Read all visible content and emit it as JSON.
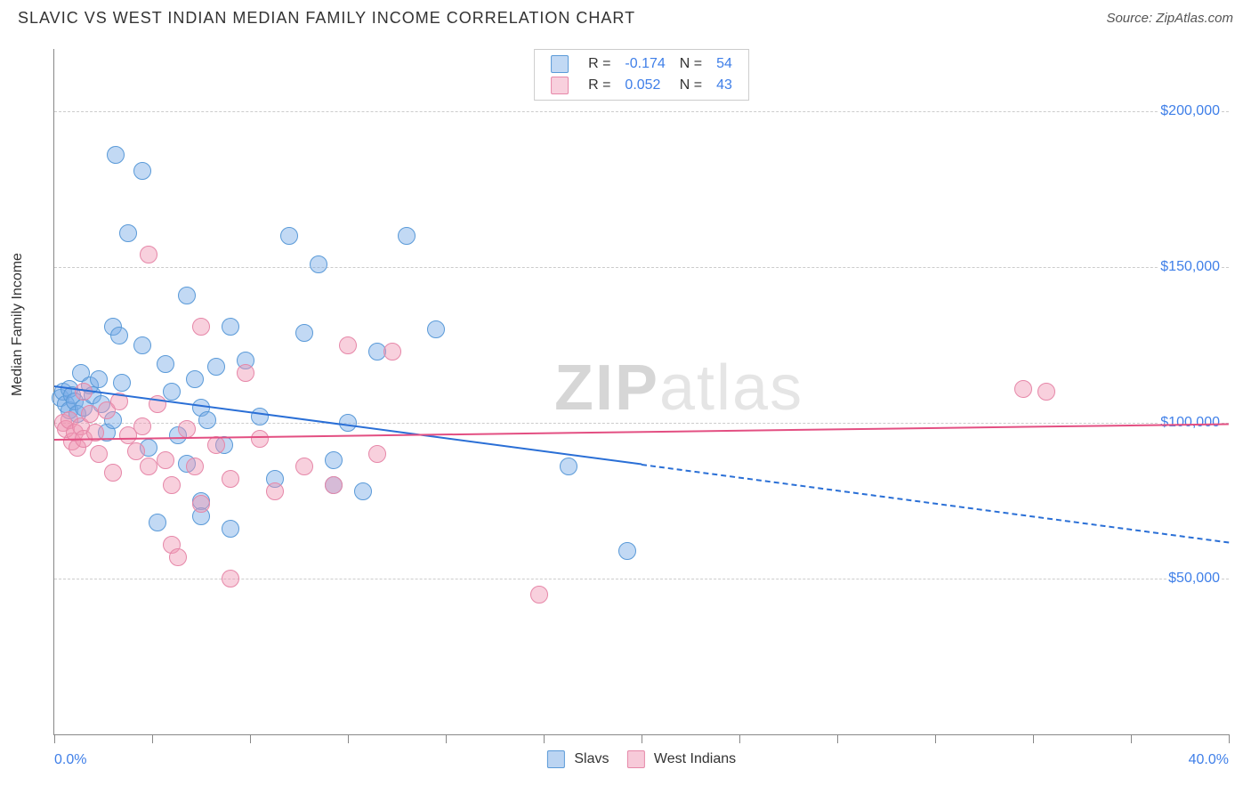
{
  "title": "SLAVIC VS WEST INDIAN MEDIAN FAMILY INCOME CORRELATION CHART",
  "source": "Source: ZipAtlas.com",
  "ylabel": "Median Family Income",
  "watermark_bold": "ZIP",
  "watermark_rest": "atlas",
  "chart": {
    "type": "scatter",
    "xlim": [
      0,
      40
    ],
    "ylim": [
      0,
      220000
    ],
    "xtick_labels": {
      "first": "0.0%",
      "last": "40.0%"
    },
    "xtick_positions": [
      0,
      3.33,
      6.67,
      10,
      13.33,
      16.67,
      20,
      23.33,
      26.67,
      30,
      33.33,
      36.67,
      40
    ],
    "yticks": [
      {
        "v": 50000,
        "label": "$50,000"
      },
      {
        "v": 100000,
        "label": "$100,000"
      },
      {
        "v": 150000,
        "label": "$150,000"
      },
      {
        "v": 200000,
        "label": "$200,000"
      }
    ],
    "background_color": "#ffffff",
    "grid_color": "#cccccc",
    "series": [
      {
        "name": "Slavs",
        "key": "slavs",
        "fill": "rgba(120,170,230,0.45)",
        "stroke": "#5a9ad8",
        "line_color": "#2a6fd6",
        "marker_r": 9,
        "R": "-0.174",
        "N": "54",
        "regression": {
          "y_at_x0": 112000,
          "y_at_x40": 62000,
          "solid_until_x": 20
        },
        "points": [
          [
            0.2,
            108000
          ],
          [
            0.3,
            110000
          ],
          [
            0.4,
            106000
          ],
          [
            0.5,
            104000
          ],
          [
            0.5,
            111000
          ],
          [
            0.6,
            109000
          ],
          [
            0.7,
            107000
          ],
          [
            0.8,
            103000
          ],
          [
            0.9,
            116000
          ],
          [
            1.0,
            105000
          ],
          [
            1.2,
            112000
          ],
          [
            1.3,
            109000
          ],
          [
            1.5,
            114000
          ],
          [
            1.6,
            106000
          ],
          [
            1.8,
            97000
          ],
          [
            2.0,
            101000
          ],
          [
            2.0,
            131000
          ],
          [
            2.1,
            186000
          ],
          [
            2.2,
            128000
          ],
          [
            2.3,
            113000
          ],
          [
            2.5,
            161000
          ],
          [
            3.0,
            181000
          ],
          [
            3.0,
            125000
          ],
          [
            3.2,
            92000
          ],
          [
            3.5,
            68000
          ],
          [
            3.8,
            119000
          ],
          [
            4.0,
            110000
          ],
          [
            4.2,
            96000
          ],
          [
            4.5,
            141000
          ],
          [
            4.5,
            87000
          ],
          [
            4.8,
            114000
          ],
          [
            5.0,
            105000
          ],
          [
            5.0,
            75000
          ],
          [
            5.0,
            70000
          ],
          [
            5.2,
            101000
          ],
          [
            5.5,
            118000
          ],
          [
            5.8,
            93000
          ],
          [
            6.0,
            131000
          ],
          [
            6.0,
            66000
          ],
          [
            6.5,
            120000
          ],
          [
            7.0,
            102000
          ],
          [
            7.5,
            82000
          ],
          [
            8.0,
            160000
          ],
          [
            8.5,
            129000
          ],
          [
            9.0,
            151000
          ],
          [
            9.5,
            88000
          ],
          [
            9.5,
            80000
          ],
          [
            10.0,
            100000
          ],
          [
            11.0,
            123000
          ],
          [
            12.0,
            160000
          ],
          [
            13.0,
            130000
          ],
          [
            17.5,
            86000
          ],
          [
            19.5,
            59000
          ],
          [
            10.5,
            78000
          ]
        ]
      },
      {
        "name": "West Indians",
        "key": "westindians",
        "fill": "rgba(240,150,180,0.45)",
        "stroke": "#e687a8",
        "line_color": "#e34f82",
        "marker_r": 9,
        "R": "0.052",
        "N": "43",
        "regression": {
          "y_at_x0": 95000,
          "y_at_x40": 100000,
          "solid_until_x": 40
        },
        "points": [
          [
            0.3,
            100000
          ],
          [
            0.4,
            98000
          ],
          [
            0.5,
            101000
          ],
          [
            0.6,
            94000
          ],
          [
            0.7,
            97000
          ],
          [
            0.8,
            92000
          ],
          [
            0.9,
            99000
          ],
          [
            1.0,
            95000
          ],
          [
            1.0,
            110000
          ],
          [
            1.2,
            103000
          ],
          [
            1.4,
            97000
          ],
          [
            1.5,
            90000
          ],
          [
            1.8,
            104000
          ],
          [
            2.0,
            84000
          ],
          [
            2.2,
            107000
          ],
          [
            2.5,
            96000
          ],
          [
            2.8,
            91000
          ],
          [
            3.0,
            99000
          ],
          [
            3.2,
            86000
          ],
          [
            3.2,
            154000
          ],
          [
            3.5,
            106000
          ],
          [
            3.8,
            88000
          ],
          [
            4.0,
            61000
          ],
          [
            4.0,
            80000
          ],
          [
            4.2,
            57000
          ],
          [
            4.5,
            98000
          ],
          [
            4.8,
            86000
          ],
          [
            5.0,
            74000
          ],
          [
            5.0,
            131000
          ],
          [
            5.5,
            93000
          ],
          [
            6.0,
            82000
          ],
          [
            6.0,
            50000
          ],
          [
            6.5,
            116000
          ],
          [
            7.0,
            95000
          ],
          [
            7.5,
            78000
          ],
          [
            8.5,
            86000
          ],
          [
            9.5,
            80000
          ],
          [
            10.0,
            125000
          ],
          [
            11.0,
            90000
          ],
          [
            11.5,
            123000
          ],
          [
            16.5,
            45000
          ],
          [
            33.0,
            111000
          ],
          [
            33.8,
            110000
          ]
        ]
      }
    ]
  },
  "legend_bottom": [
    {
      "swatch_fill": "rgba(120,170,230,0.5)",
      "swatch_stroke": "#5a9ad8",
      "label": "Slavs"
    },
    {
      "swatch_fill": "rgba(240,150,180,0.5)",
      "swatch_stroke": "#e687a8",
      "label": "West Indians"
    }
  ]
}
